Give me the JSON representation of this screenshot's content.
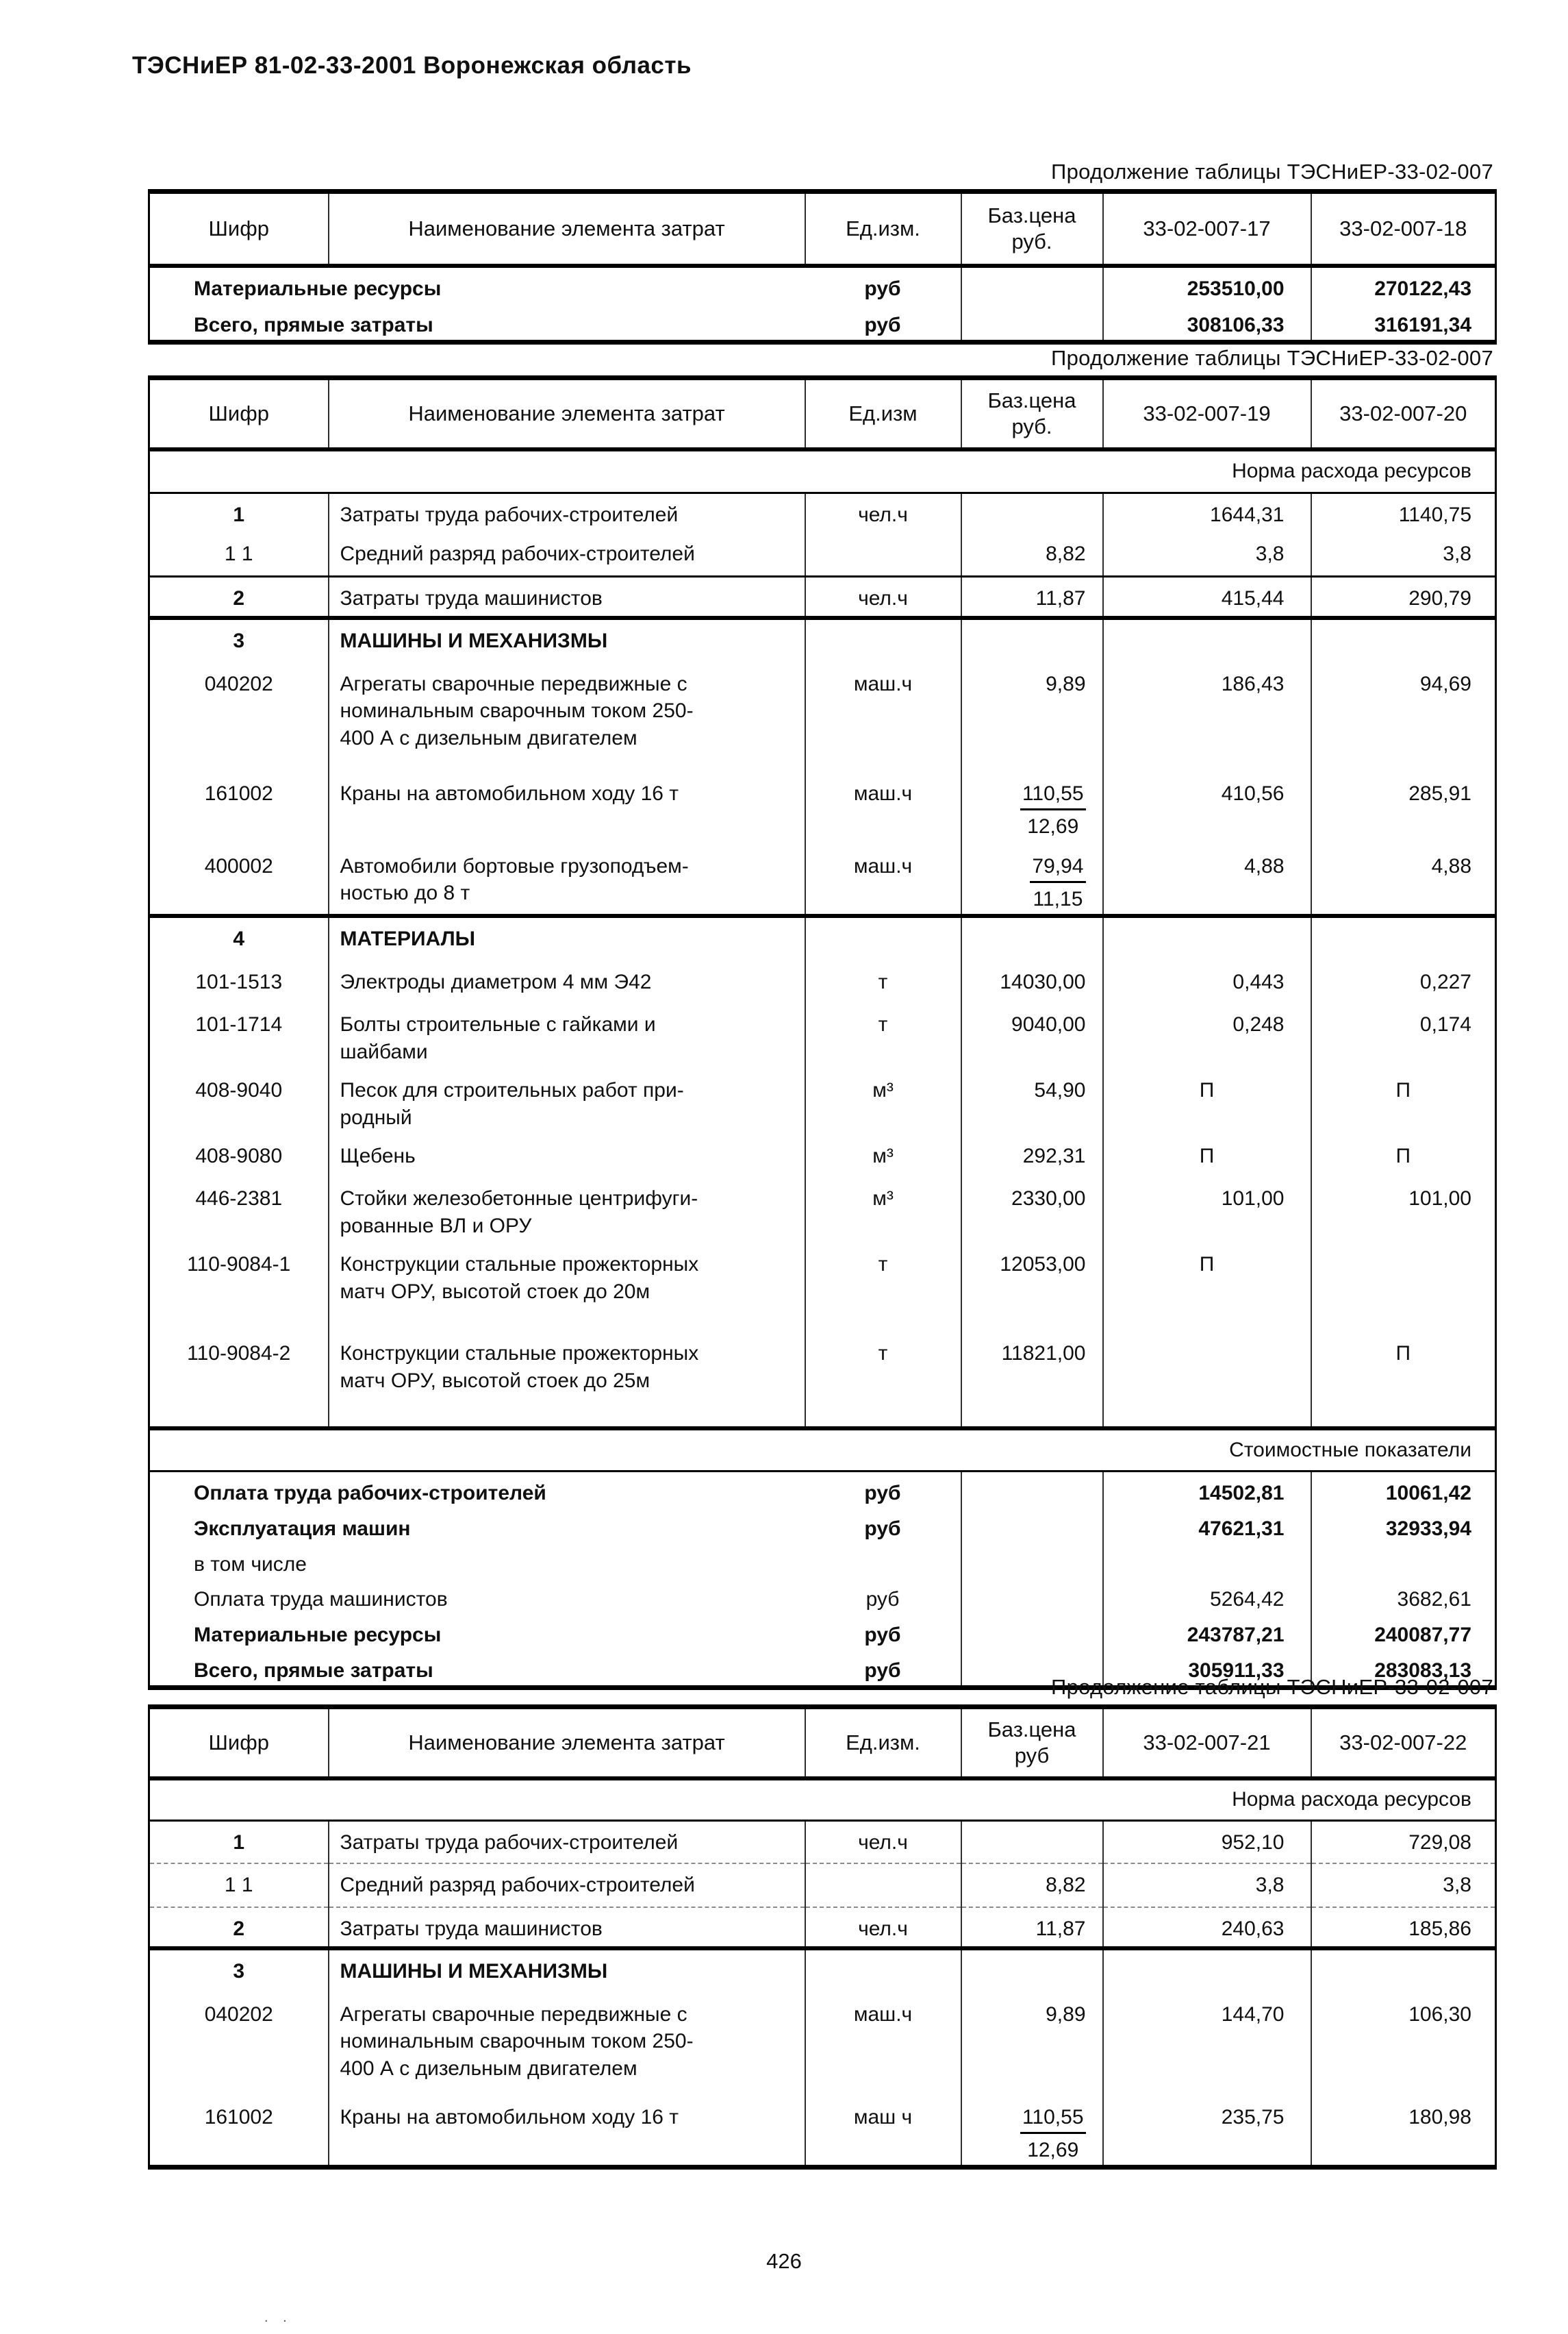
{
  "page": {
    "title": "ТЭСНиЕР 81-02-33-2001 Воронежская область",
    "page_number": "426",
    "stray_marks": ". ."
  },
  "tables": [
    {
      "caption": "Продолжение таблицы ТЭСНиЕР-33-02-007",
      "header": [
        "Шифр",
        "Наименование элемента затрат",
        "Ед.изм.",
        "Баз.цена\nруб.",
        "33-02-007-17",
        "33-02-007-18"
      ],
      "rows": [
        {
          "type": "summary",
          "bold": true,
          "label": "Материальные ресурсы",
          "unit": "руб",
          "v1": "253510,00",
          "v2": "270122,43"
        },
        {
          "type": "summary",
          "bold": true,
          "label": "Всего, прямые затраты",
          "unit": "руб",
          "v1": "308106,33",
          "v2": "316191,34"
        }
      ]
    },
    {
      "caption": "Продолжение таблицы ТЭСНиЕР-33-02-007",
      "header": [
        "Шифр",
        "Наименование элемента затрат",
        "Ед.изм",
        "Баз.цена\nруб.",
        "33-02-007-19",
        "33-02-007-20"
      ],
      "rows": [
        {
          "type": "subheader",
          "label": "Норма расхода ресурсов",
          "border": "thin"
        },
        {
          "type": "data",
          "code": "1",
          "code_bold": true,
          "name": "Затраты труда рабочих-строителей",
          "unit": "чел.ч",
          "base": "",
          "v1": "1644,31",
          "v2": "1140,75"
        },
        {
          "type": "data",
          "code": "1 1",
          "name": "Средний разряд рабочих-строителей",
          "unit": "",
          "base": "8,82",
          "v1": "3,8",
          "v2": "3,8",
          "border": "thin"
        },
        {
          "type": "data",
          "code": "2",
          "code_bold": true,
          "name": "Затраты труда машинистов",
          "unit": "чел.ч",
          "base": "11,87",
          "v1": "415,44",
          "v2": "290,79",
          "border": "thick"
        },
        {
          "type": "section",
          "code": "3",
          "name": "МАШИНЫ И МЕХАНИЗМЫ"
        },
        {
          "type": "data",
          "code": "040202",
          "name": "Агрегаты сварочные передвижные с\nноминальным сварочным током 250-\n400 А с дизельным двигателем",
          "unit": "маш.ч",
          "base": "9,89",
          "v1": "186,43",
          "v2": "94,69"
        },
        {
          "type": "data",
          "code": "161002",
          "name": "Краны на автомобильном ходу 16 т",
          "unit": "маш.ч",
          "base_frac": [
            "110,55",
            "12,69"
          ],
          "v1": "410,56",
          "v2": "285,91"
        },
        {
          "type": "data",
          "code": "400002",
          "name": "Автомобили бортовые грузоподъем-\nностью до 8 т",
          "unit": "маш.ч",
          "base_frac": [
            "79,94",
            "11,15"
          ],
          "v1": "4,88",
          "v2": "4,88",
          "border": "thick"
        },
        {
          "type": "section",
          "code": "4",
          "name": "МАТЕРИАЛЫ"
        },
        {
          "type": "data",
          "code": "101-1513",
          "name": "Электроды диаметром 4 мм Э42",
          "unit": "т",
          "base": "14030,00",
          "v1": "0,443",
          "v2": "0,227"
        },
        {
          "type": "data",
          "code": "101-1714",
          "name": "Болты строительные с гайками и\nшайбами",
          "unit": "т",
          "base": "9040,00",
          "v1": "0,248",
          "v2": "0,174"
        },
        {
          "type": "data",
          "code": "408-9040",
          "name": "Песок для строительных работ при-\nродный",
          "unit": "м³",
          "base": "54,90",
          "v1": "П",
          "v2": "П"
        },
        {
          "type": "data",
          "code": "408-9080",
          "name": "Щебень",
          "unit": "м³",
          "base": "292,31",
          "v1": "П",
          "v2": "П"
        },
        {
          "type": "data",
          "code": "446-2381",
          "name": "Стойки железобетонные центрифуги-\nрованные ВЛ и ОРУ",
          "unit": "м³",
          "base": "2330,00",
          "v1": "101,00",
          "v2": "101,00"
        },
        {
          "type": "data",
          "code": "110-9084-1",
          "name": "Конструкции стальные прожекторных\nматч ОРУ, высотой стоек до 20м",
          "unit": "т",
          "base": "12053,00",
          "v1": "П",
          "v2": ""
        },
        {
          "type": "data",
          "code": "110-9084-2",
          "name": "Конструкции стальные прожекторных\nматч ОРУ, высотой стоек до 25м",
          "unit": "т",
          "base": "11821,00",
          "v1": "",
          "v2": "П",
          "border": "thick"
        },
        {
          "type": "subheader",
          "label": "Стоимостные показатели",
          "border": "thin"
        },
        {
          "type": "summary",
          "bold": true,
          "label": "Оплата труда рабочих-строителей",
          "unit": "руб",
          "v1": "14502,81",
          "v2": "10061,42"
        },
        {
          "type": "summary",
          "bold": true,
          "label": "Эксплуатация машин",
          "unit": "руб",
          "v1": "47621,31",
          "v2": "32933,94"
        },
        {
          "type": "summary",
          "bold": false,
          "label": "в том числе",
          "unit": "",
          "v1": "",
          "v2": ""
        },
        {
          "type": "summary",
          "bold": false,
          "label": "Оплата труда машинистов",
          "unit": "руб",
          "v1": "5264,42",
          "v2": "3682,61"
        },
        {
          "type": "summary",
          "bold": true,
          "label": "Материальные ресурсы",
          "unit": "руб",
          "v1": "243787,21",
          "v2": "240087,77"
        },
        {
          "type": "summary",
          "bold": true,
          "label": "Всего, прямые затраты",
          "unit": "руб",
          "v1": "305911,33",
          "v2": "283083,13"
        }
      ]
    },
    {
      "caption": "Продолжение таблицы ТЭСНиЕР-33-02-007",
      "header": [
        "Шифр",
        "Наименование элемента затрат",
        "Ед.изм.",
        "Баз.цена\nруб",
        "33-02-007-21",
        "33-02-007-22"
      ],
      "rows": [
        {
          "type": "subheader",
          "label": "Норма расхода ресурсов",
          "border": "thin"
        },
        {
          "type": "data",
          "code": "1",
          "code_bold": true,
          "name": "Затраты труда рабочих-строителей",
          "unit": "чел.ч",
          "base": "",
          "v1": "952,10",
          "v2": "729,08",
          "border": "dash"
        },
        {
          "type": "data",
          "code": "1 1",
          "name": "Средний разряд рабочих-строителей",
          "unit": "",
          "base": "8,82",
          "v1": "3,8",
          "v2": "3,8",
          "border": "dash"
        },
        {
          "type": "data",
          "code": "2",
          "code_bold": true,
          "name": "Затраты труда машинистов",
          "unit": "чел.ч",
          "base": "11,87",
          "v1": "240,63",
          "v2": "185,86",
          "border": "thick"
        },
        {
          "type": "section",
          "code": "3",
          "name": "МАШИНЫ И МЕХАНИЗМЫ"
        },
        {
          "type": "data",
          "code": "040202",
          "name": "Агрегаты сварочные передвижные с\nноминальным сварочным током 250-\n400 А с дизельным двигателем",
          "unit": "маш.ч",
          "base": "9,89",
          "v1": "144,70",
          "v2": "106,30"
        },
        {
          "type": "data",
          "code": "161002",
          "name": "Краны на автомобильном ходу 16 т",
          "unit": "маш ч",
          "base_frac": [
            "110,55",
            "12,69"
          ],
          "v1": "235,75",
          "v2": "180,98"
        }
      ]
    }
  ]
}
